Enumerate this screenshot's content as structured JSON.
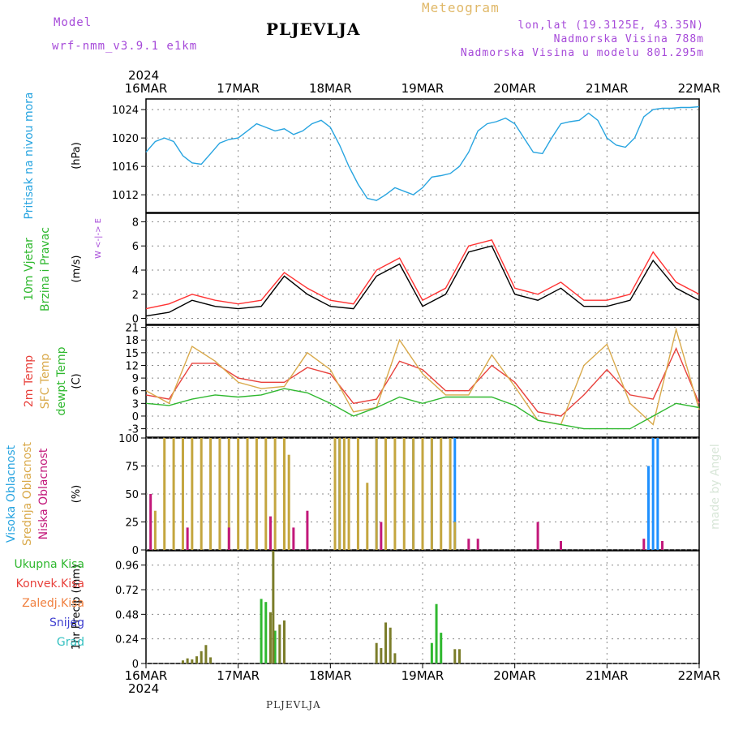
{
  "header": {
    "model_label": "Model",
    "model_name": "wrf-nmm_v3.9.1 e1km",
    "station": "PLJEVLJA",
    "product": "Meteogram",
    "lonlat": "lon,lat (19.3125E, 43.35N)",
    "elev": "Nadmorska Visina 788m",
    "elev_model": "Nadmorska Visina u modelu 801.295m",
    "year": "2024",
    "footer_station": "PLJEVLJA",
    "watermark": "made by Angel"
  },
  "chart_data": [
    {
      "id": "pressure",
      "type": "line",
      "ylabel": "(hPa)",
      "side_labels": [
        "Pritisak na nivou mora"
      ],
      "yticks": [
        1012,
        1016,
        1020,
        1024
      ],
      "ylim": [
        1009.5,
        1025.5
      ],
      "x_categories": [
        "16MAR",
        "17MAR",
        "18MAR",
        "19MAR",
        "20MAR",
        "21MAR",
        "22MAR"
      ],
      "series": [
        {
          "color": "#27a4e0",
          "x": [
            0,
            0.1,
            0.2,
            0.3,
            0.4,
            0.5,
            0.6,
            0.7,
            0.8,
            0.9,
            1.0,
            1.1,
            1.2,
            1.3,
            1.4,
            1.5,
            1.6,
            1.7,
            1.8,
            1.9,
            2.0,
            2.1,
            2.2,
            2.3,
            2.4,
            2.5,
            2.6,
            2.7,
            2.8,
            2.9,
            3.0,
            3.1,
            3.2,
            3.3,
            3.4,
            3.5,
            3.6,
            3.7,
            3.8,
            3.9,
            4.0,
            4.1,
            4.2,
            4.3,
            4.4,
            4.5,
            4.6,
            4.7,
            4.8,
            4.9,
            5.0,
            5.1,
            5.2,
            5.3,
            5.4,
            5.5,
            5.6,
            5.7,
            5.8,
            5.9,
            6.0
          ],
          "values": [
            1018.0,
            1019.5,
            1020.0,
            1019.5,
            1017.5,
            1016.5,
            1016.3,
            1017.8,
            1019.3,
            1019.8,
            1020.0,
            1021.0,
            1022.0,
            1021.5,
            1021.0,
            1021.3,
            1020.5,
            1021.0,
            1022.0,
            1022.5,
            1021.5,
            1019.0,
            1016.0,
            1013.5,
            1011.5,
            1011.2,
            1012.0,
            1013.0,
            1012.5,
            1012.0,
            1013.0,
            1014.5,
            1014.7,
            1015.0,
            1016.0,
            1018.0,
            1021.0,
            1022.0,
            1022.3,
            1022.8,
            1022.0,
            1020.0,
            1018.0,
            1017.8,
            1020.0,
            1022.0,
            1022.3,
            1022.5,
            1023.5,
            1022.5,
            1020.0,
            1019.0,
            1018.7,
            1020.0,
            1023.0,
            1024.0,
            1024.2,
            1024.2,
            1024.3,
            1024.3,
            1024.4
          ]
        }
      ]
    },
    {
      "id": "wind",
      "type": "line",
      "ylabel": "(m/s)",
      "side_labels": [
        "10m Vjetar",
        "Brzina i Pravac"
      ],
      "compass": "W <-|-> E",
      "yticks": [
        0,
        2,
        4,
        6,
        8
      ],
      "ylim": [
        -0.5,
        8.7
      ],
      "x_categories": [
        "16MAR",
        "17MAR",
        "18MAR",
        "19MAR",
        "20MAR",
        "21MAR",
        "22MAR"
      ],
      "series": [
        {
          "color": "#000000",
          "x": [
            0,
            0.25,
            0.5,
            0.75,
            1.0,
            1.25,
            1.5,
            1.75,
            2.0,
            2.25,
            2.5,
            2.75,
            3.0,
            3.25,
            3.5,
            3.75,
            4.0,
            4.25,
            4.5,
            4.75,
            5.0,
            5.25,
            5.5,
            5.75,
            6.0
          ],
          "values": [
            0.2,
            0.5,
            1.5,
            1.0,
            0.8,
            1.0,
            3.5,
            2.0,
            1.0,
            0.8,
            3.5,
            4.5,
            1.0,
            2.0,
            5.5,
            6.0,
            2.0,
            1.5,
            2.5,
            1.0,
            1.0,
            1.5,
            4.8,
            2.5,
            1.5
          ]
        },
        {
          "color": "#ff3333",
          "x": [
            0,
            0.25,
            0.5,
            0.75,
            1.0,
            1.25,
            1.5,
            1.75,
            2.0,
            2.25,
            2.5,
            2.75,
            3.0,
            3.25,
            3.5,
            3.75,
            4.0,
            4.25,
            4.5,
            4.75,
            5.0,
            5.25,
            5.5,
            5.75,
            6.0
          ],
          "values": [
            0.8,
            1.2,
            2.0,
            1.5,
            1.2,
            1.5,
            3.8,
            2.5,
            1.5,
            1.2,
            4.0,
            5.0,
            1.5,
            2.5,
            6.0,
            6.5,
            2.5,
            2.0,
            3.0,
            1.5,
            1.5,
            2.0,
            5.5,
            3.0,
            2.0
          ]
        }
      ]
    },
    {
      "id": "temperature",
      "type": "line",
      "ylabel": "(C)",
      "side_labels": [
        "2m Temp",
        "SFC Temp",
        "dewpt Temp"
      ],
      "yticks": [
        -3,
        0,
        3,
        6,
        9,
        12,
        15,
        18,
        21
      ],
      "ylim": [
        -5,
        21.5
      ],
      "x_categories": [
        "16MAR",
        "17MAR",
        "18MAR",
        "19MAR",
        "20MAR",
        "21MAR",
        "22MAR"
      ],
      "series": [
        {
          "name": "2m Temp",
          "color": "#e8413c",
          "x": [
            0,
            0.25,
            0.5,
            0.75,
            1.0,
            1.25,
            1.5,
            1.75,
            2.0,
            2.25,
            2.5,
            2.75,
            3.0,
            3.25,
            3.5,
            3.75,
            4.0,
            4.25,
            4.5,
            4.75,
            5.0,
            5.25,
            5.5,
            5.75,
            6.0
          ],
          "values": [
            5,
            4,
            12.5,
            12.5,
            9,
            8,
            8,
            11.5,
            10,
            3,
            4,
            13,
            11,
            6,
            6,
            12,
            8,
            1,
            0,
            5,
            11,
            5,
            4,
            16,
            3
          ]
        },
        {
          "name": "SFC Temp",
          "color": "#d9a94a",
          "x": [
            0,
            0.25,
            0.5,
            0.75,
            1.0,
            1.25,
            1.5,
            1.75,
            2.0,
            2.25,
            2.5,
            2.75,
            3.0,
            3.25,
            3.5,
            3.75,
            4.0,
            4.25,
            4.5,
            4.75,
            5.0,
            5.25,
            5.5,
            5.75,
            6.0
          ],
          "values": [
            6,
            3,
            16.5,
            13,
            8,
            6.5,
            7,
            15,
            11,
            1,
            2,
            18,
            10,
            5,
            5,
            14.5,
            7,
            -1,
            -2,
            12,
            17,
            3,
            -2,
            20.5,
            1.5
          ]
        },
        {
          "name": "dewpt Temp",
          "color": "#2fb82f",
          "x": [
            0,
            0.25,
            0.5,
            0.75,
            1.0,
            1.25,
            1.5,
            1.75,
            2.0,
            2.25,
            2.5,
            2.75,
            3.0,
            3.25,
            3.5,
            3.75,
            4.0,
            4.25,
            4.5,
            4.75,
            5.0,
            5.25,
            5.5,
            5.75,
            6.0
          ],
          "values": [
            3,
            2.5,
            4,
            5,
            4.5,
            5,
            6.5,
            5.5,
            3,
            0,
            2,
            4.5,
            3,
            4.5,
            4.5,
            4.5,
            2.5,
            -1,
            -2,
            -3,
            -3,
            -3,
            0,
            3,
            2
          ]
        }
      ]
    },
    {
      "id": "cloud",
      "type": "bar",
      "ylabel": "(%)",
      "side_labels": [
        "Visoka Oblacnost",
        "Srednja Oblacnost",
        "Niska Oblacnost"
      ],
      "yticks": [
        0,
        25,
        50,
        75,
        100
      ],
      "ylim": [
        0,
        100
      ],
      "x_categories": [
        "16MAR",
        "17MAR",
        "18MAR",
        "19MAR",
        "20MAR",
        "21MAR",
        "22MAR"
      ],
      "series": [
        {
          "name": "Visoka Oblacnost",
          "color": "#1e90ff",
          "x": [
            2.1,
            2.5,
            2.9,
            3.1,
            3.35,
            5.45,
            5.5,
            5.55
          ],
          "values": [
            100,
            100,
            100,
            100,
            100,
            75,
            100,
            100
          ]
        },
        {
          "name": "Srednja Oblacnost",
          "color": "#c4a63f",
          "x": [
            0.1,
            0.2,
            0.3,
            0.4,
            0.5,
            0.6,
            0.7,
            0.8,
            0.9,
            1.0,
            1.1,
            1.2,
            1.3,
            1.4,
            1.5,
            1.55,
            2.05,
            2.1,
            2.15,
            2.2,
            2.3,
            2.4,
            2.5,
            2.6,
            2.7,
            2.8,
            2.9,
            3.0,
            3.1,
            3.2,
            3.3,
            3.35
          ],
          "values": [
            35,
            100,
            100,
            100,
            100,
            100,
            100,
            100,
            100,
            100,
            100,
            100,
            100,
            100,
            100,
            85,
            100,
            100,
            100,
            100,
            100,
            60,
            100,
            100,
            100,
            100,
            100,
            100,
            100,
            100,
            100,
            25
          ]
        },
        {
          "name": "Niska Oblacnost",
          "color": "#c2187a",
          "x": [
            0.05,
            0.45,
            0.9,
            1.35,
            1.6,
            1.75,
            2.55,
            3.5,
            3.6,
            4.25,
            4.5,
            5.4,
            5.6
          ],
          "values": [
            50,
            20,
            20,
            30,
            20,
            35,
            25,
            10,
            10,
            25,
            8,
            10,
            8
          ]
        }
      ]
    },
    {
      "id": "precip",
      "type": "bar",
      "ylabel": "1hr Precip (mm)",
      "legend": [
        {
          "label": "Ukupna Kisa",
          "color": "#2fb82f"
        },
        {
          "label": "Konvek.Kisa",
          "color": "#e8413c"
        },
        {
          "label": "Zaledj.Kisa",
          "color": "#f08040"
        },
        {
          "label": "Snijeg",
          "color": "#4040d0"
        },
        {
          "label": "Grad",
          "color": "#33c0c0"
        }
      ],
      "yticks": [
        0,
        0.24,
        0.48,
        0.72,
        0.96
      ],
      "ylim": [
        0,
        1.1
      ],
      "x_categories": [
        "16MAR",
        "17MAR",
        "18MAR",
        "19MAR",
        "20MAR",
        "21MAR",
        "22MAR"
      ],
      "series": [
        {
          "name": "Ukupna Kisa",
          "color": "#2fb82f",
          "x": [
            1.25,
            1.3,
            1.4,
            3.1,
            3.15,
            3.2
          ],
          "values": [
            0.63,
            0.6,
            0.32,
            0.2,
            0.58,
            0.3
          ]
        },
        {
          "name": "Zaledj.Kisa",
          "color": "#7b7d2a",
          "x": [
            0.4,
            0.45,
            0.5,
            0.55,
            0.6,
            0.65,
            0.7,
            1.35,
            1.38,
            1.45,
            1.5,
            2.5,
            2.55,
            2.6,
            2.65,
            2.7,
            3.35,
            3.4
          ],
          "values": [
            0.03,
            0.05,
            0.04,
            0.07,
            0.12,
            0.18,
            0.06,
            0.5,
            1.1,
            0.38,
            0.42,
            0.2,
            0.15,
            0.4,
            0.35,
            0.1,
            0.14,
            0.14
          ]
        }
      ]
    }
  ]
}
